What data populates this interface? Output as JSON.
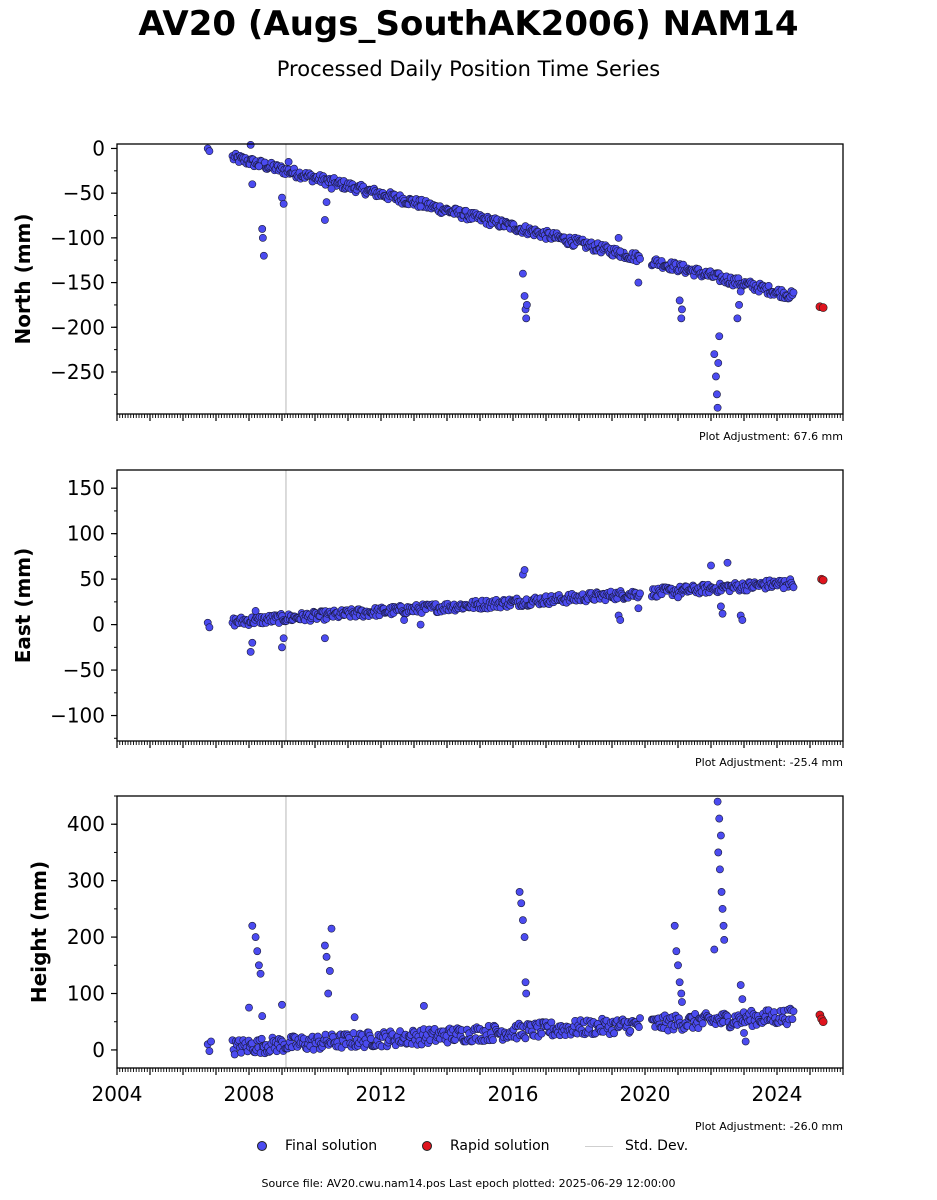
{
  "page": {
    "title": "AV20 (Augs_SouthAK2006) NAM14",
    "subtitle": "Processed Daily Position Time Series",
    "source_line": "Source file: AV20.cwu.nam14.pos  Last epoch plotted: 2025-06-29 12:00:00"
  },
  "legend": {
    "final_label": "Final solution",
    "rapid_label": "Rapid solution",
    "std_label": "Std. Dev."
  },
  "colors": {
    "final": "#4b4bf0",
    "rapid": "#e0141e",
    "std_dev": "#cfcfcf",
    "marker_edge": "#1a1a3a"
  },
  "chart_data": [
    {
      "type": "scatter",
      "ylabel": "North (mm)",
      "adjustment_label": "Plot Adjustment: 67.6 mm",
      "xlim": [
        2004.0,
        2026.0
      ],
      "ylim": [
        -297,
        5
      ],
      "yticks": [
        0,
        -50,
        -100,
        -150,
        -200,
        -250
      ],
      "vline_x": 2009.12,
      "trend": {
        "x_start": 2007.5,
        "y_start": -10,
        "x_end": 2024.5,
        "y_end": -165
      },
      "final_points": [
        [
          2006.75,
          0
        ],
        [
          2006.8,
          -3
        ],
        [
          2008.05,
          4
        ],
        [
          2008.4,
          -90
        ],
        [
          2008.42,
          -100
        ],
        [
          2008.45,
          -120
        ],
        [
          2008.3,
          -20
        ],
        [
          2008.1,
          -40
        ],
        [
          2009.0,
          -55
        ],
        [
          2009.05,
          -62
        ],
        [
          2009.2,
          -15
        ],
        [
          2010.3,
          -80
        ],
        [
          2010.35,
          -60
        ],
        [
          2010.5,
          -45
        ],
        [
          2013.2,
          -65
        ],
        [
          2016.3,
          -140
        ],
        [
          2016.35,
          -165
        ],
        [
          2016.4,
          -190
        ],
        [
          2016.38,
          -180
        ],
        [
          2019.2,
          -100
        ],
        [
          2019.25,
          -115
        ],
        [
          2019.8,
          -150
        ],
        [
          2021.05,
          -170
        ],
        [
          2021.1,
          -190
        ],
        [
          2022.1,
          -230
        ],
        [
          2022.15,
          -255
        ],
        [
          2022.2,
          -290
        ],
        [
          2022.18,
          -275
        ],
        [
          2022.25,
          -210
        ],
        [
          2022.8,
          -190
        ],
        [
          2022.85,
          -175
        ],
        [
          2022.9,
          -160
        ],
        [
          2016.42,
          -175
        ],
        [
          2021.12,
          -180
        ],
        [
          2022.22,
          -240
        ]
      ],
      "rapid_points": [
        [
          2025.3,
          -177
        ],
        [
          2025.4,
          -178
        ]
      ]
    },
    {
      "type": "scatter",
      "ylabel": "East (mm)",
      "adjustment_label": "Plot Adjustment: -25.4 mm",
      "xlim": [
        2004.0,
        2026.0
      ],
      "ylim": [
        -128,
        170
      ],
      "yticks": [
        150,
        100,
        50,
        0,
        -50,
        -100
      ],
      "vline_x": 2009.12,
      "trend": {
        "x_start": 2007.5,
        "y_start": 3,
        "x_end": 2024.5,
        "y_end": 46
      },
      "final_points": [
        [
          2006.75,
          2
        ],
        [
          2006.8,
          -3
        ],
        [
          2008.05,
          -30
        ],
        [
          2008.1,
          -20
        ],
        [
          2008.2,
          15
        ],
        [
          2009.0,
          -25
        ],
        [
          2009.05,
          -15
        ],
        [
          2010.3,
          -15
        ],
        [
          2016.3,
          55
        ],
        [
          2016.35,
          60
        ],
        [
          2019.2,
          10
        ],
        [
          2019.25,
          5
        ],
        [
          2019.8,
          18
        ],
        [
          2021.0,
          30
        ],
        [
          2022.3,
          20
        ],
        [
          2022.35,
          12
        ],
        [
          2022.9,
          10
        ],
        [
          2022.95,
          5
        ],
        [
          2022.5,
          68
        ],
        [
          2022.0,
          65
        ],
        [
          2012.7,
          5
        ],
        [
          2013.2,
          0
        ],
        [
          2024.2,
          40
        ]
      ],
      "rapid_points": [
        [
          2025.35,
          50
        ],
        [
          2025.4,
          49
        ]
      ]
    },
    {
      "type": "scatter",
      "ylabel": "Height (mm)",
      "adjustment_label": "Plot Adjustment: -26.0 mm",
      "xlim": [
        2004.0,
        2026.0
      ],
      "ylim": [
        -32,
        450
      ],
      "yticks": [
        0,
        100,
        200,
        300,
        400
      ],
      "xticks": [
        2004,
        2008,
        2012,
        2016,
        2020,
        2024
      ],
      "vline_x": 2009.12,
      "trend": {
        "x_start": 2007.5,
        "y_start": 5,
        "x_end": 2024.5,
        "y_end": 60
      },
      "final_points": [
        [
          2006.75,
          10
        ],
        [
          2006.8,
          -2
        ],
        [
          2006.85,
          15
        ],
        [
          2008.1,
          220
        ],
        [
          2008.2,
          200
        ],
        [
          2008.25,
          175
        ],
        [
          2008.3,
          150
        ],
        [
          2008.35,
          135
        ],
        [
          2008.0,
          75
        ],
        [
          2008.4,
          60
        ],
        [
          2009.0,
          80
        ],
        [
          2010.3,
          185
        ],
        [
          2010.35,
          165
        ],
        [
          2010.45,
          140
        ],
        [
          2010.5,
          215
        ],
        [
          2010.4,
          100
        ],
        [
          2011.2,
          58
        ],
        [
          2013.3,
          78
        ],
        [
          2016.2,
          280
        ],
        [
          2016.25,
          260
        ],
        [
          2016.3,
          230
        ],
        [
          2016.35,
          200
        ],
        [
          2016.38,
          120
        ],
        [
          2016.4,
          100
        ],
        [
          2020.9,
          220
        ],
        [
          2020.95,
          175
        ],
        [
          2021.0,
          150
        ],
        [
          2021.05,
          120
        ],
        [
          2021.1,
          100
        ],
        [
          2021.12,
          85
        ],
        [
          2022.2,
          440
        ],
        [
          2022.25,
          410
        ],
        [
          2022.3,
          380
        ],
        [
          2022.22,
          350
        ],
        [
          2022.27,
          320
        ],
        [
          2022.32,
          280
        ],
        [
          2022.35,
          250
        ],
        [
          2022.38,
          220
        ],
        [
          2022.4,
          195
        ],
        [
          2022.1,
          178
        ],
        [
          2022.9,
          115
        ],
        [
          2022.95,
          90
        ],
        [
          2023.0,
          30
        ],
        [
          2023.05,
          15
        ]
      ],
      "rapid_points": [
        [
          2025.3,
          62
        ],
        [
          2025.35,
          55
        ],
        [
          2025.4,
          50
        ]
      ]
    }
  ]
}
